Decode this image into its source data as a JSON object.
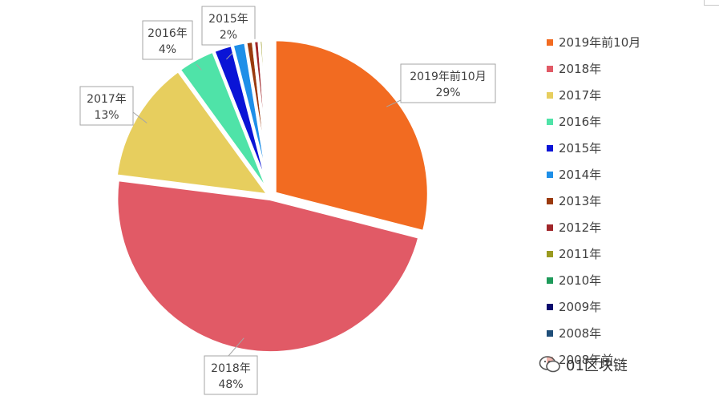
{
  "chart_data": {
    "type": "pie",
    "title": "",
    "series": [
      {
        "name": "2019年前10月",
        "value": 29,
        "color": "#F26B21",
        "label": "2019年前10月",
        "pct": "29%"
      },
      {
        "name": "2018年",
        "value": 48,
        "color": "#E15A66",
        "label": "2018年",
        "pct": "48%"
      },
      {
        "name": "2017年",
        "value": 13,
        "color": "#E7CE5E",
        "label": "2017年",
        "pct": "13%"
      },
      {
        "name": "2016年",
        "value": 4,
        "color": "#4FE3A8",
        "label": "2016年",
        "pct": "4%"
      },
      {
        "name": "2015年",
        "value": 2,
        "color": "#0A14D6",
        "label": "2015年",
        "pct": "2%"
      },
      {
        "name": "2014年",
        "value": 1.4,
        "color": "#1E8FE8",
        "label": "",
        "pct": ""
      },
      {
        "name": "2013年",
        "value": 0.8,
        "color": "#9A3A0E",
        "label": "",
        "pct": ""
      },
      {
        "name": "2012年",
        "value": 0.6,
        "color": "#A0262A",
        "label": "",
        "pct": ""
      },
      {
        "name": "2011年",
        "value": 0.4,
        "color": "#9A9A20",
        "label": "",
        "pct": ""
      },
      {
        "name": "2010年",
        "value": 0.3,
        "color": "#1E9A5A",
        "label": "",
        "pct": ""
      },
      {
        "name": "2009年",
        "value": 0.2,
        "color": "#0A0A6E",
        "label": "",
        "pct": ""
      },
      {
        "name": "2008年",
        "value": 0.15,
        "color": "#1F4E79",
        "label": "",
        "pct": ""
      },
      {
        "name": "2008年前",
        "value": 0.15,
        "color": "#F2B8B0",
        "label": "",
        "pct": ""
      }
    ],
    "legend_position": "right"
  },
  "watermark": {
    "text": "01区块链",
    "icon": "wechat-icon"
  }
}
